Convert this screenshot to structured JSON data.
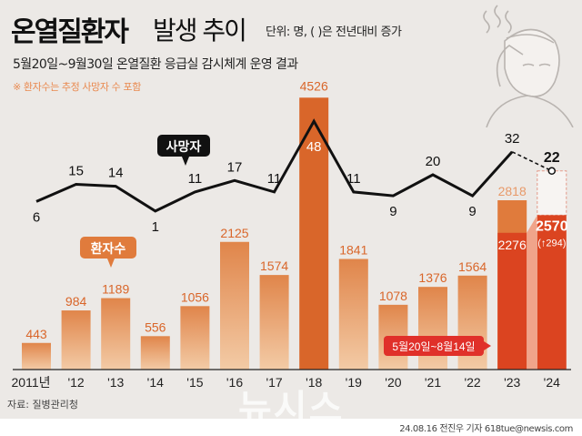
{
  "header": {
    "title_bold": "온열질환자",
    "title_rest": "발생 추이",
    "unit": "단위: 명, ( )은 전년대비 증가",
    "subtitle": "5월20일~9월30일 온열질환 응급실 감시체계 운영 결과",
    "note": "※ 환자수는 추정 사망자 수 포함"
  },
  "footer": {
    "source": "자료: 질병관리청",
    "credit": "24.08.16 전진우 기자 618tue@newsis.com",
    "watermark": "뉴시스"
  },
  "colors": {
    "bar_top": "#e0854a",
    "bar_bottom": "#f3cba6",
    "peak_bar": "#d9662a",
    "bar_2023": "#e07b3c",
    "partial_red": "#db4420",
    "callout_red": "#e0302a",
    "line": "#111111",
    "label_orange": "#d9662a"
  },
  "chart_data": {
    "type": "bar+line",
    "title": "온열질환자 발생 추이",
    "categories": [
      "2011년",
      "'12",
      "'13",
      "'14",
      "'15",
      "'16",
      "'17",
      "'18",
      "'19",
      "'20",
      "'21",
      "'22",
      "'23",
      "'24"
    ],
    "series": [
      {
        "name": "환자수",
        "type": "bar",
        "values": [
          443,
          984,
          1189,
          556,
          1056,
          2125,
          1574,
          4526,
          1841,
          1078,
          1376,
          1564,
          2818,
          2570
        ]
      },
      {
        "name": "사망자",
        "type": "line",
        "values": [
          6,
          15,
          14,
          1,
          11,
          17,
          11,
          48,
          11,
          9,
          20,
          9,
          32,
          22
        ]
      }
    ],
    "partial_period": {
      "label": "5월20일~8월14일",
      "values_2023": 2276,
      "values_2024": 2570,
      "increase_label": "294"
    },
    "legend_patients": "환자수",
    "legend_deaths": "사망자",
    "ylim": [
      0,
      4600
    ]
  }
}
